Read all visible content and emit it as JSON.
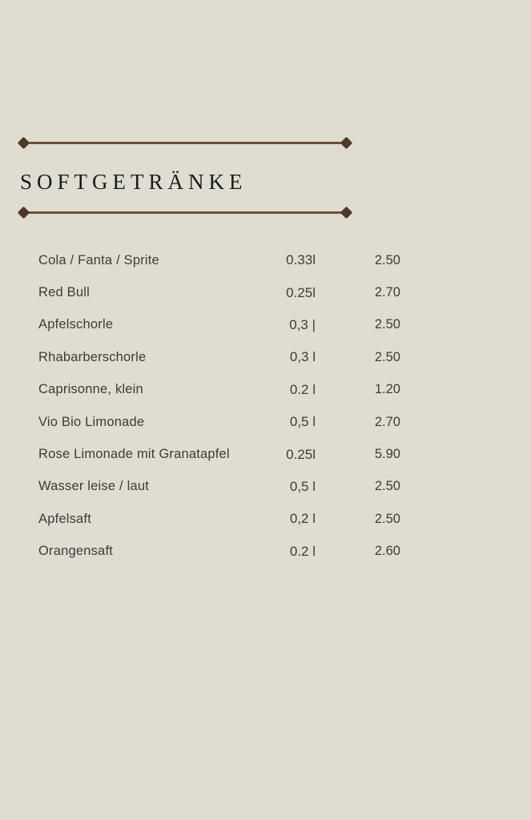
{
  "page": {
    "background_color": "#dfddd0",
    "rule_color": "#6c5238",
    "diamond_color": "#4e3a27",
    "title_color": "#1b1b1d",
    "text_color": "#3d3c37"
  },
  "header": {
    "title": "SOFTGETRÄNKE"
  },
  "menu": {
    "items": [
      {
        "name": "Cola / Fanta / Sprite",
        "size": "0.33l",
        "price": "2.50"
      },
      {
        "name": "Red Bull",
        "size": "0.25l",
        "price": "2.70"
      },
      {
        "name": "Apfelschorle",
        "size": "0,3 |",
        "price": "2.50"
      },
      {
        "name": "Rhabarberschorle",
        "size": "0,3 l",
        "price": "2.50"
      },
      {
        "name": "Caprisonne, klein",
        "size": "0.2 l",
        "price": "1.20"
      },
      {
        "name": "Vio Bio Limonade",
        "size": "0,5 l",
        "price": "2.70"
      },
      {
        "name": "Rose Limonade mit Granatapfel",
        "size": "0.25l",
        "price": "5.90"
      },
      {
        "name": "Wasser leise / laut",
        "size": "0,5 l",
        "price": "2.50"
      },
      {
        "name": "Apfelsaft",
        "size": "0,2 l",
        "price": "2.50"
      },
      {
        "name": "Orangensaft",
        "size": "0.2 l",
        "price": "2.60"
      }
    ]
  }
}
